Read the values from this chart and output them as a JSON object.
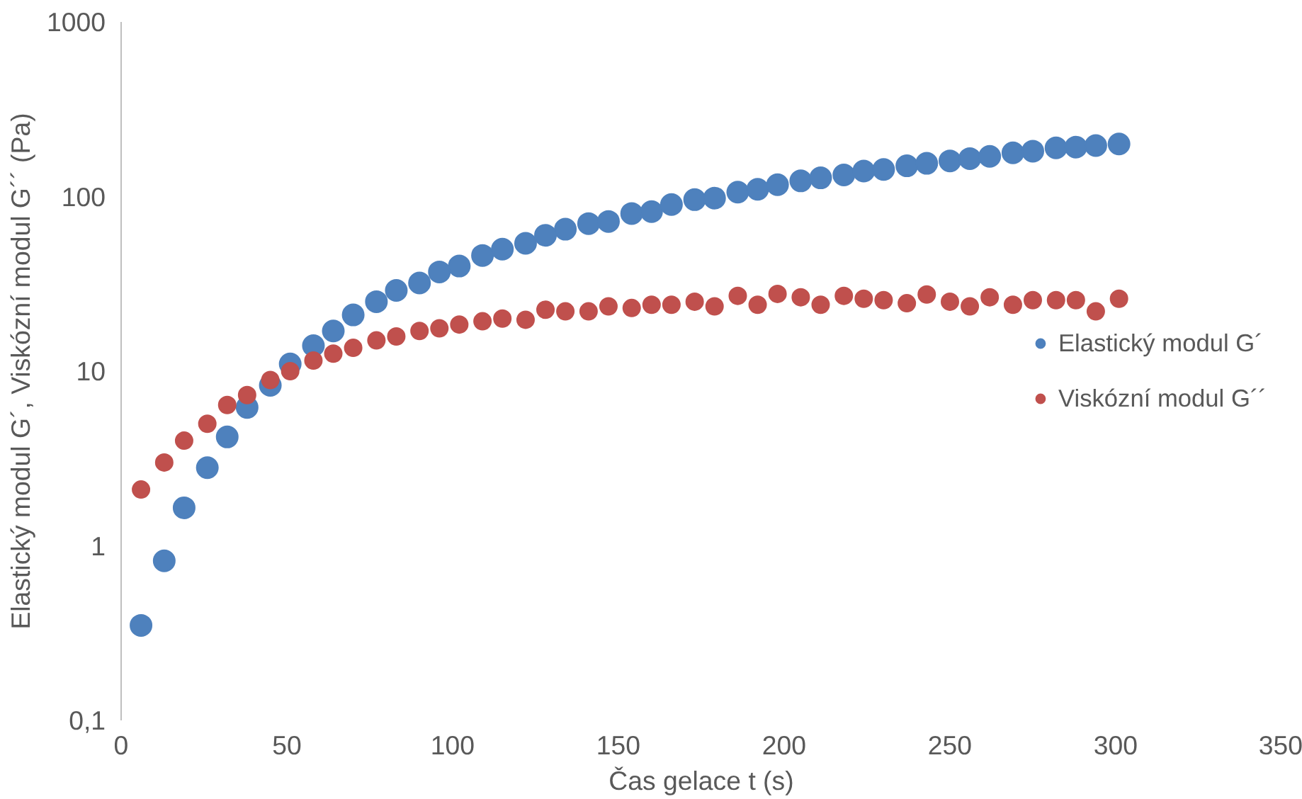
{
  "chart_data": {
    "type": "scatter",
    "xlabel": "Čas gelace t (s)",
    "ylabel": "Elastický modul G´, Viskózní modul G´´ (Pa)",
    "x": [
      6,
      13,
      19,
      26,
      32,
      38,
      45,
      51,
      58,
      64,
      70,
      77,
      83,
      90,
      96,
      102,
      109,
      115,
      122,
      128,
      134,
      141,
      147,
      154,
      160,
      166,
      173,
      179,
      186,
      192,
      198,
      205,
      211,
      218,
      224,
      230,
      237,
      243,
      250,
      256,
      262,
      269,
      275,
      282,
      288,
      294,
      301
    ],
    "series": [
      {
        "name": "Elastický modul G´",
        "color": "#4e81bd",
        "values": [
          0.35,
          0.82,
          1.65,
          2.8,
          4.2,
          6.2,
          8.3,
          11,
          14,
          17,
          21,
          25,
          29,
          32,
          37,
          40,
          46,
          50,
          54,
          60,
          65,
          70,
          72,
          80,
          82,
          90,
          96,
          98,
          106,
          110,
          117,
          123,
          128,
          133,
          140,
          143,
          150,
          155,
          160,
          165,
          170,
          178,
          182,
          190,
          192,
          196,
          200
        ]
      },
      {
        "name": "Viskózní modul G´´",
        "color": "#c0504d",
        "values": [
          2.1,
          3.0,
          4.0,
          5.0,
          6.4,
          7.3,
          8.9,
          10,
          11.5,
          12.6,
          13.6,
          15,
          15.8,
          17,
          17.6,
          18.5,
          19.3,
          20,
          19.7,
          22.5,
          22,
          22,
          23.5,
          23,
          24,
          24,
          25,
          23.5,
          27,
          24,
          27.7,
          26.5,
          24,
          27,
          26,
          25.5,
          24.5,
          27.5,
          25,
          23.5,
          26.5,
          24,
          25.5,
          25.5,
          25.5,
          22,
          26
        ]
      }
    ],
    "log": "y",
    "xlim": [
      0,
      350
    ],
    "xticks": [
      0,
      50,
      100,
      150,
      200,
      250,
      300,
      350
    ],
    "ylim": [
      0.1,
      1000
    ],
    "yticks": [
      {
        "value": 0.1,
        "label": "0,1"
      },
      1,
      10,
      100,
      1000
    ],
    "grid": false,
    "legend": "right",
    "marker": "circle"
  }
}
